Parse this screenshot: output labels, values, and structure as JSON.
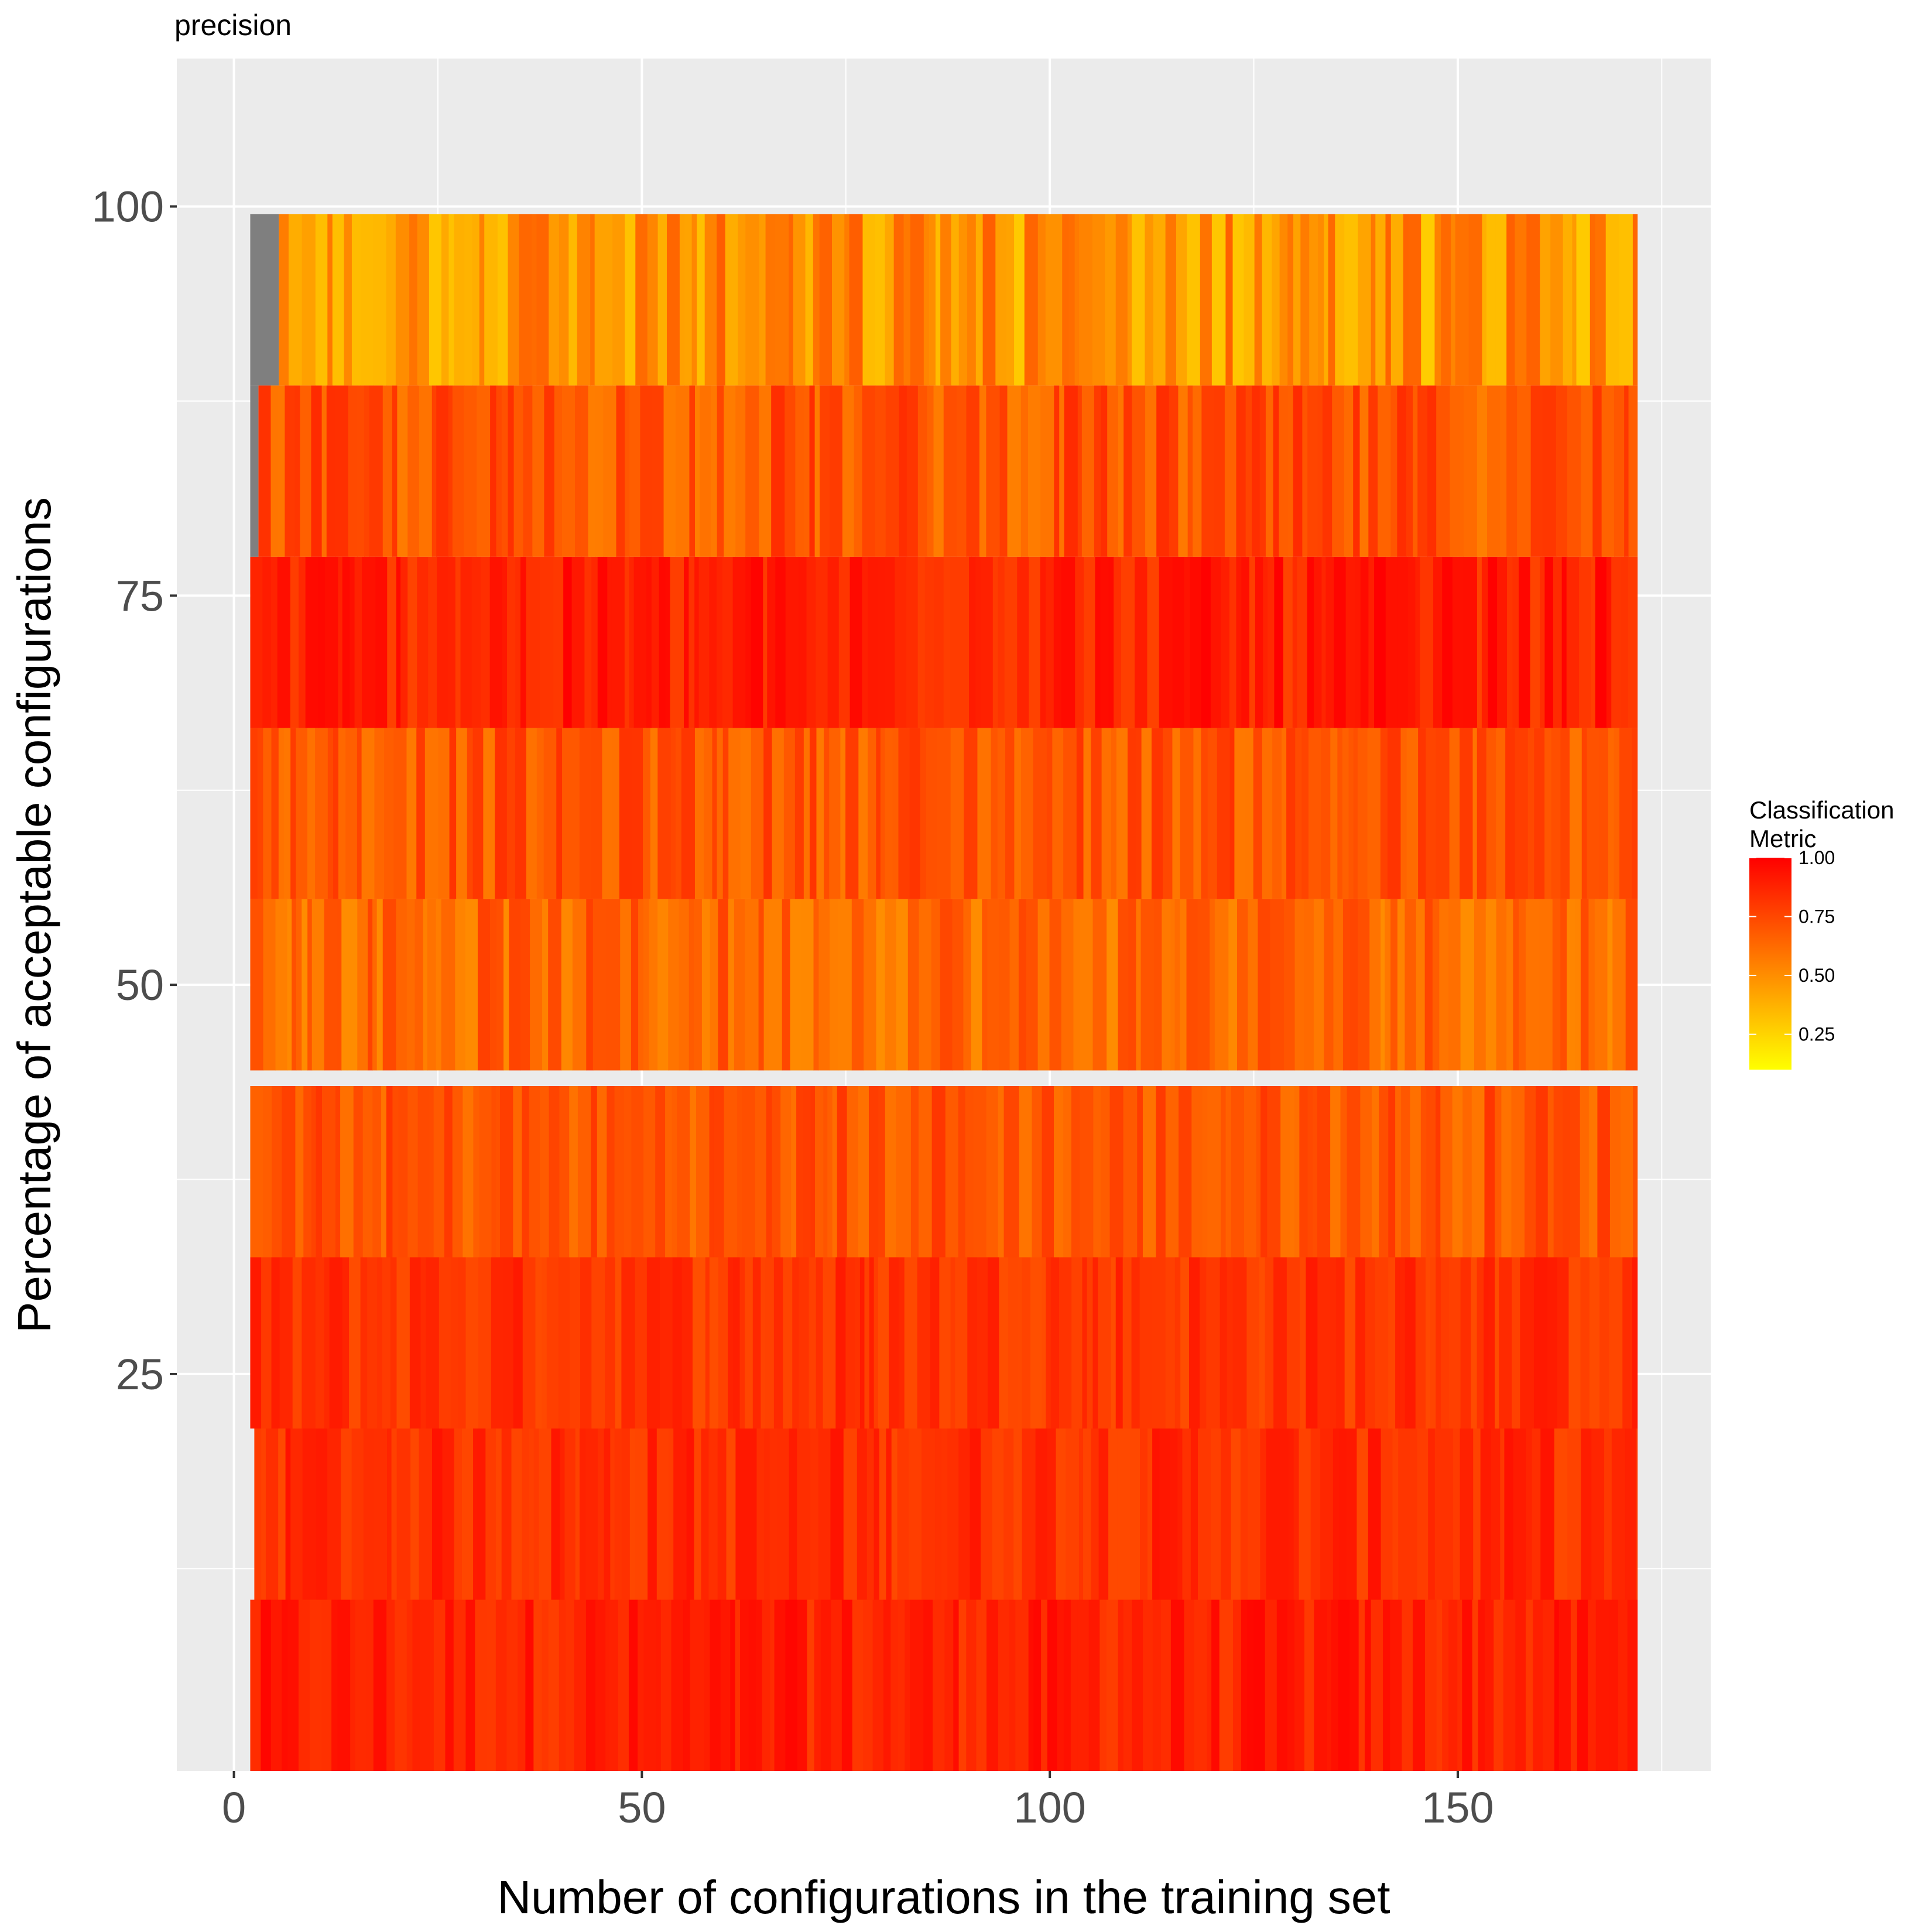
{
  "chart_data": {
    "type": "heatmap",
    "title": "precision",
    "xlabel": "Number of configurations in the training set",
    "ylabel": "Percentage of acceptable configurations",
    "xlim": [
      -7,
      181
    ],
    "ylim": [
      -0.5,
      109.5
    ],
    "x_ticks": [
      0,
      50,
      100,
      150
    ],
    "x_tick_labels": [
      "0",
      "50",
      "100",
      "150"
    ],
    "y_ticks": [
      25,
      50,
      75,
      100
    ],
    "y_tick_labels": [
      "25",
      "50",
      "75",
      "100"
    ],
    "grid": true,
    "x_range": [
      2,
      172
    ],
    "rows": [
      {
        "y": 5,
        "start": 2,
        "base": 0.88,
        "spread": 0.1
      },
      {
        "y": 16,
        "start": 2.5,
        "base": 0.84,
        "spread": 0.1
      },
      {
        "y": 27,
        "start": 2,
        "base": 0.82,
        "spread": 0.1
      },
      {
        "y": 38,
        "start": 2,
        "base": 0.7,
        "spread": 0.12
      },
      {
        "y": 50,
        "start": 2,
        "base": 0.64,
        "spread": 0.14
      },
      {
        "y": 61,
        "start": 2,
        "base": 0.7,
        "spread": 0.13
      },
      {
        "y": 72,
        "start": 2,
        "base": 0.88,
        "spread": 0.12
      },
      {
        "y": 83,
        "start": 3,
        "base": 0.7,
        "spread": 0.15
      },
      {
        "y": 94,
        "start": 5.5,
        "base": 0.48,
        "spread": 0.2
      }
    ],
    "missing_cells": [
      {
        "y": 83,
        "x": [
          2,
          3
        ]
      },
      {
        "y": 94,
        "x": [
          2,
          5.5
        ]
      }
    ],
    "missing_color": "#7f7f7f",
    "color_scale": {
      "low": "#ffff00",
      "high": "#ff0000",
      "min": 0.1,
      "max": 1.0
    },
    "legend": {
      "title_lines": [
        "Classification",
        "Metric"
      ],
      "breaks": [
        1.0,
        0.75,
        0.5,
        0.25
      ],
      "labels": [
        "1.00",
        "0.75",
        "0.50",
        "0.25"
      ],
      "position": "right"
    }
  }
}
